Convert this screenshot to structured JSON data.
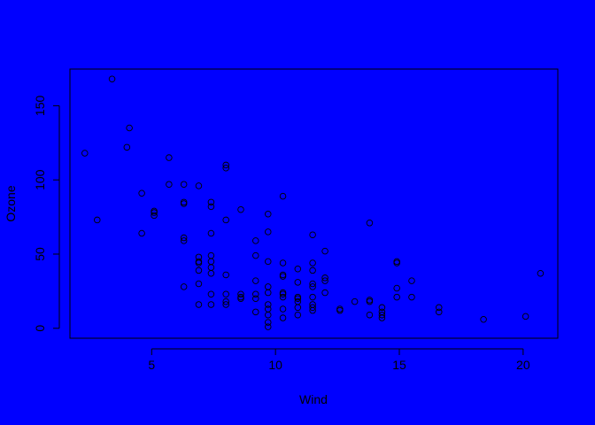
{
  "colors": {
    "background": "#0000ff",
    "ink": "#000000"
  },
  "chart_data": {
    "type": "scatter",
    "title": "",
    "xlabel": "Wind",
    "ylabel": "Ozone",
    "xlim": [
      1.7,
      21.4
    ],
    "ylim": [
      -6.7,
      174.7
    ],
    "xticks": [
      5,
      10,
      15,
      20
    ],
    "yticks": [
      0,
      50,
      100,
      150
    ],
    "grid": false,
    "legend": "none",
    "marker": "open-circle",
    "points": [
      [
        2.3,
        118
      ],
      [
        2.8,
        73
      ],
      [
        3.4,
        168
      ],
      [
        4.0,
        122
      ],
      [
        4.1,
        135
      ],
      [
        4.6,
        64
      ],
      [
        4.6,
        91
      ],
      [
        5.1,
        76
      ],
      [
        5.1,
        78
      ],
      [
        5.1,
        79
      ],
      [
        5.7,
        97
      ],
      [
        5.7,
        115
      ],
      [
        6.3,
        28
      ],
      [
        6.3,
        59
      ],
      [
        6.3,
        61
      ],
      [
        6.3,
        84
      ],
      [
        6.3,
        85
      ],
      [
        6.3,
        97
      ],
      [
        6.9,
        16
      ],
      [
        6.9,
        30
      ],
      [
        6.9,
        39
      ],
      [
        6.9,
        44
      ],
      [
        6.9,
        45
      ],
      [
        6.9,
        48
      ],
      [
        6.9,
        96
      ],
      [
        7.4,
        16
      ],
      [
        7.4,
        23
      ],
      [
        7.4,
        37
      ],
      [
        7.4,
        41
      ],
      [
        7.4,
        45
      ],
      [
        7.4,
        49
      ],
      [
        7.4,
        64
      ],
      [
        7.4,
        82
      ],
      [
        7.4,
        85
      ],
      [
        8.0,
        16
      ],
      [
        8.0,
        18
      ],
      [
        8.0,
        23
      ],
      [
        8.0,
        36
      ],
      [
        8.0,
        73
      ],
      [
        8.0,
        108
      ],
      [
        8.0,
        110
      ],
      [
        8.6,
        20
      ],
      [
        8.6,
        21
      ],
      [
        8.6,
        23
      ],
      [
        8.6,
        80
      ],
      [
        9.2,
        11
      ],
      [
        9.2,
        20
      ],
      [
        9.2,
        23
      ],
      [
        9.2,
        32
      ],
      [
        9.2,
        49
      ],
      [
        9.2,
        59
      ],
      [
        9.7,
        1
      ],
      [
        9.7,
        4
      ],
      [
        9.7,
        9
      ],
      [
        9.7,
        13
      ],
      [
        9.7,
        16
      ],
      [
        9.7,
        24
      ],
      [
        9.7,
        28
      ],
      [
        9.7,
        45
      ],
      [
        9.7,
        65
      ],
      [
        9.7,
        77
      ],
      [
        10.3,
        7
      ],
      [
        10.3,
        13
      ],
      [
        10.3,
        21
      ],
      [
        10.3,
        23
      ],
      [
        10.3,
        24
      ],
      [
        10.3,
        35
      ],
      [
        10.3,
        36
      ],
      [
        10.3,
        44
      ],
      [
        10.3,
        89
      ],
      [
        10.9,
        9
      ],
      [
        10.9,
        14
      ],
      [
        10.9,
        18
      ],
      [
        10.9,
        20
      ],
      [
        10.9,
        21
      ],
      [
        10.9,
        31
      ],
      [
        10.9,
        40
      ],
      [
        11.5,
        12
      ],
      [
        11.5,
        14
      ],
      [
        11.5,
        16
      ],
      [
        11.5,
        21
      ],
      [
        11.5,
        28
      ],
      [
        11.5,
        30
      ],
      [
        11.5,
        39
      ],
      [
        11.5,
        44
      ],
      [
        11.5,
        63
      ],
      [
        12.0,
        24
      ],
      [
        12.0,
        32
      ],
      [
        12.0,
        34
      ],
      [
        12.0,
        52
      ],
      [
        12.6,
        12
      ],
      [
        12.6,
        13
      ],
      [
        13.2,
        18
      ],
      [
        13.8,
        9
      ],
      [
        13.8,
        18
      ],
      [
        13.8,
        19
      ],
      [
        13.8,
        71
      ],
      [
        14.3,
        7
      ],
      [
        14.3,
        9
      ],
      [
        14.3,
        11
      ],
      [
        14.3,
        14
      ],
      [
        14.9,
        21
      ],
      [
        14.9,
        27
      ],
      [
        14.9,
        44
      ],
      [
        14.9,
        45
      ],
      [
        15.5,
        21
      ],
      [
        15.5,
        32
      ],
      [
        16.6,
        11
      ],
      [
        16.6,
        14
      ],
      [
        18.4,
        6
      ],
      [
        20.1,
        8
      ],
      [
        20.7,
        37
      ]
    ]
  }
}
